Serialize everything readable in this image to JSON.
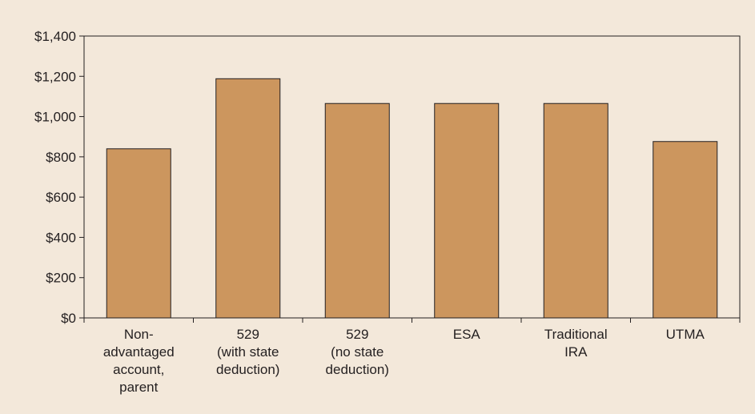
{
  "colors": {
    "background": "#f3e8da",
    "bar_fill": "#cc965e",
    "bar_stroke": "#231f20",
    "axis": "#231f20",
    "text": "#231f20"
  },
  "chart_data": {
    "type": "bar",
    "title": "",
    "xlabel": "",
    "ylabel": "",
    "categories": [
      "Non-advantaged account, parent",
      "529 (with state deduction)",
      "529 (no state deduction)",
      "ESA",
      "Traditional IRA",
      "UTMA"
    ],
    "category_label_lines": [
      [
        "Non-",
        "advantaged",
        "account,",
        "parent"
      ],
      [
        "529",
        "(with state",
        "deduction)"
      ],
      [
        "529",
        "(no state",
        "deduction)"
      ],
      [
        "ESA"
      ],
      [
        "Traditional",
        "IRA"
      ],
      [
        "UTMA"
      ]
    ],
    "values": [
      840,
      1188,
      1065,
      1065,
      1065,
      876
    ],
    "ylim": [
      0,
      1400
    ],
    "yticks": [
      0,
      200,
      400,
      600,
      800,
      1000,
      1200,
      1400
    ],
    "ytick_labels": [
      "$0",
      "$200",
      "$400",
      "$600",
      "$800",
      "$1,000",
      "$1,200",
      "$1,400"
    ],
    "grid": false,
    "legend": "none"
  }
}
